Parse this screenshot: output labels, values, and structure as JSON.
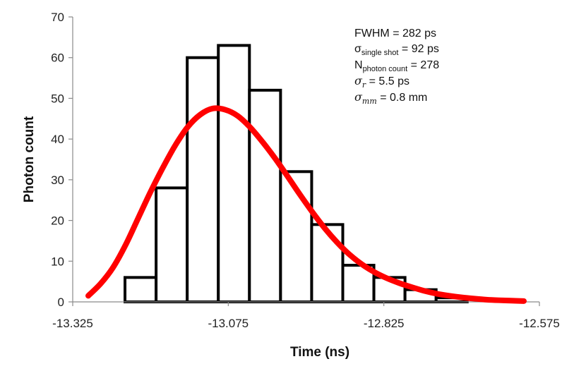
{
  "chart_data": {
    "type": "bar",
    "title": "",
    "xlabel": "Time (ns)",
    "ylabel": "Photon count",
    "xlim": [
      -13.325,
      -12.575
    ],
    "ylim": [
      0,
      70
    ],
    "xticks": [
      -13.325,
      -13.075,
      -12.825,
      -12.575
    ],
    "xtick_labels": [
      "-13.325",
      "-13.075",
      "-12.825",
      "-12.575"
    ],
    "yticks": [
      0,
      10,
      20,
      30,
      40,
      50,
      60,
      70
    ],
    "ytick_labels": [
      "0",
      "10",
      "20",
      "30",
      "40",
      "50",
      "60",
      "70"
    ],
    "bin_width": 0.05,
    "bins": [
      {
        "x0": -13.241,
        "count": 6
      },
      {
        "x0": -13.191,
        "count": 28
      },
      {
        "x0": -13.141,
        "count": 60
      },
      {
        "x0": -13.091,
        "count": 63
      },
      {
        "x0": -13.041,
        "count": 52
      },
      {
        "x0": -12.991,
        "count": 32
      },
      {
        "x0": -12.941,
        "count": 19
      },
      {
        "x0": -12.891,
        "count": 9
      },
      {
        "x0": -12.841,
        "count": 6
      },
      {
        "x0": -12.791,
        "count": 3
      },
      {
        "x0": -12.741,
        "count": 1
      }
    ],
    "fit_curve": {
      "name": "fit",
      "color": "#ff0000",
      "x": [
        -13.3,
        -13.28,
        -13.26,
        -13.24,
        -13.22,
        -13.2,
        -13.18,
        -13.16,
        -13.14,
        -13.12,
        -13.1,
        -13.08,
        -13.06,
        -13.04,
        -13.02,
        -13.0,
        -12.98,
        -12.96,
        -12.94,
        -12.92,
        -12.9,
        -12.88,
        -12.86,
        -12.84,
        -12.82,
        -12.8,
        -12.78,
        -12.76,
        -12.74,
        -12.72,
        -12.7,
        -12.68,
        -12.66,
        -12.64,
        -12.62,
        -12.6
      ],
      "y": [
        1.5,
        4.5,
        8.5,
        14,
        20.5,
        27,
        33,
        38.5,
        43,
        46,
        47.5,
        47.2,
        45.7,
        42.9,
        39.3,
        35.3,
        30.9,
        26.4,
        22.1,
        18.1,
        14.6,
        11.6,
        9.2,
        7.3,
        5.8,
        4.6,
        3.6,
        2.7,
        2.0,
        1.5,
        1.1,
        0.8,
        0.55,
        0.4,
        0.3,
        0.2
      ]
    },
    "annotations": {
      "fwhm": "FWHM = 282 ps",
      "sigma_single_main": "σ",
      "sigma_single_sub": "single shot",
      "sigma_single_value": " = 92 ps",
      "n_photon_main": "N",
      "n_photon_sub": "photon count",
      "n_photon_value": " = 278",
      "sigma_r_main": "σ",
      "sigma_r_sub": "r",
      "sigma_r_value": " = 5.5 ps",
      "sigma_mm_main": "σ",
      "sigma_mm_sub": "mm",
      "sigma_mm_value": " = 0.8 mm"
    }
  }
}
